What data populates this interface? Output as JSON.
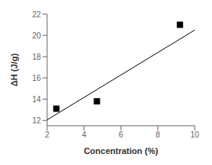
{
  "chart_data": {
    "type": "scatter",
    "xlabel": "Concentration (%)",
    "ylabel": "ΔH (J/g)",
    "series": [
      {
        "type": "line",
        "color": "black",
        "x": [
          2.0,
          10.0
        ],
        "values": [
          12.05,
          20.5
        ]
      },
      {
        "type": "scatter",
        "color": "black",
        "marker": "square",
        "x": [
          2.5,
          4.7,
          9.2
        ],
        "values": [
          13.1,
          13.8,
          21.0
        ]
      }
    ],
    "xlim": [
      2,
      10
    ],
    "ylim": [
      11.5,
      22
    ],
    "xticks": [
      2,
      4,
      6,
      8,
      10
    ],
    "yticks": [
      12,
      14,
      16,
      18,
      20,
      22
    ],
    "grid": false
  }
}
